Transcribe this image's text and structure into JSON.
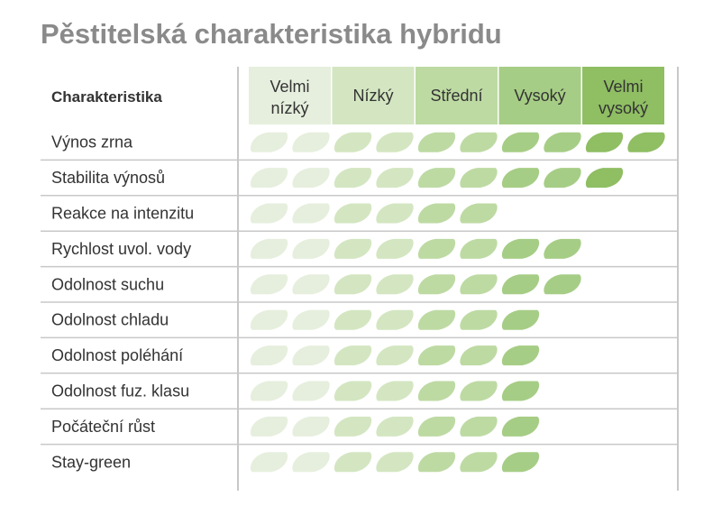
{
  "title": "Pěstitelská charakteristika hybridu",
  "chart_data": {
    "type": "table",
    "title": "Pěstitelská charakteristika hybridu",
    "row_header": "Charakteristika",
    "levels": [
      {
        "lines": [
          "Velmi",
          "nízký"
        ],
        "color": "#e6efdd"
      },
      {
        "lines": [
          "Nízký"
        ],
        "color": "#d3e6c1"
      },
      {
        "lines": [
          "Střední"
        ],
        "color": "#bddaa3"
      },
      {
        "lines": [
          "Vysoký"
        ],
        "color": "#a6cd85"
      },
      {
        "lines": [
          "Velmi",
          "vysoký"
        ],
        "color": "#8fbe63"
      }
    ],
    "max_score": 10,
    "rows": [
      {
        "label": "Výnos zrna",
        "value": 10
      },
      {
        "label": "Stabilita výnosů",
        "value": 9
      },
      {
        "label": "Reakce na intenzitu",
        "value": 6
      },
      {
        "label": "Rychlost uvol. vody",
        "value": 8
      },
      {
        "label": "Odolnost suchu",
        "value": 8
      },
      {
        "label": "Odolnost chladu",
        "value": 7
      },
      {
        "label": "Odolnost poléhání",
        "value": 7
      },
      {
        "label": "Odolnost fuz. klasu",
        "value": 7
      },
      {
        "label": "Počáteční růst",
        "value": 7
      },
      {
        "label": "Stay-green",
        "value": 7
      }
    ]
  }
}
